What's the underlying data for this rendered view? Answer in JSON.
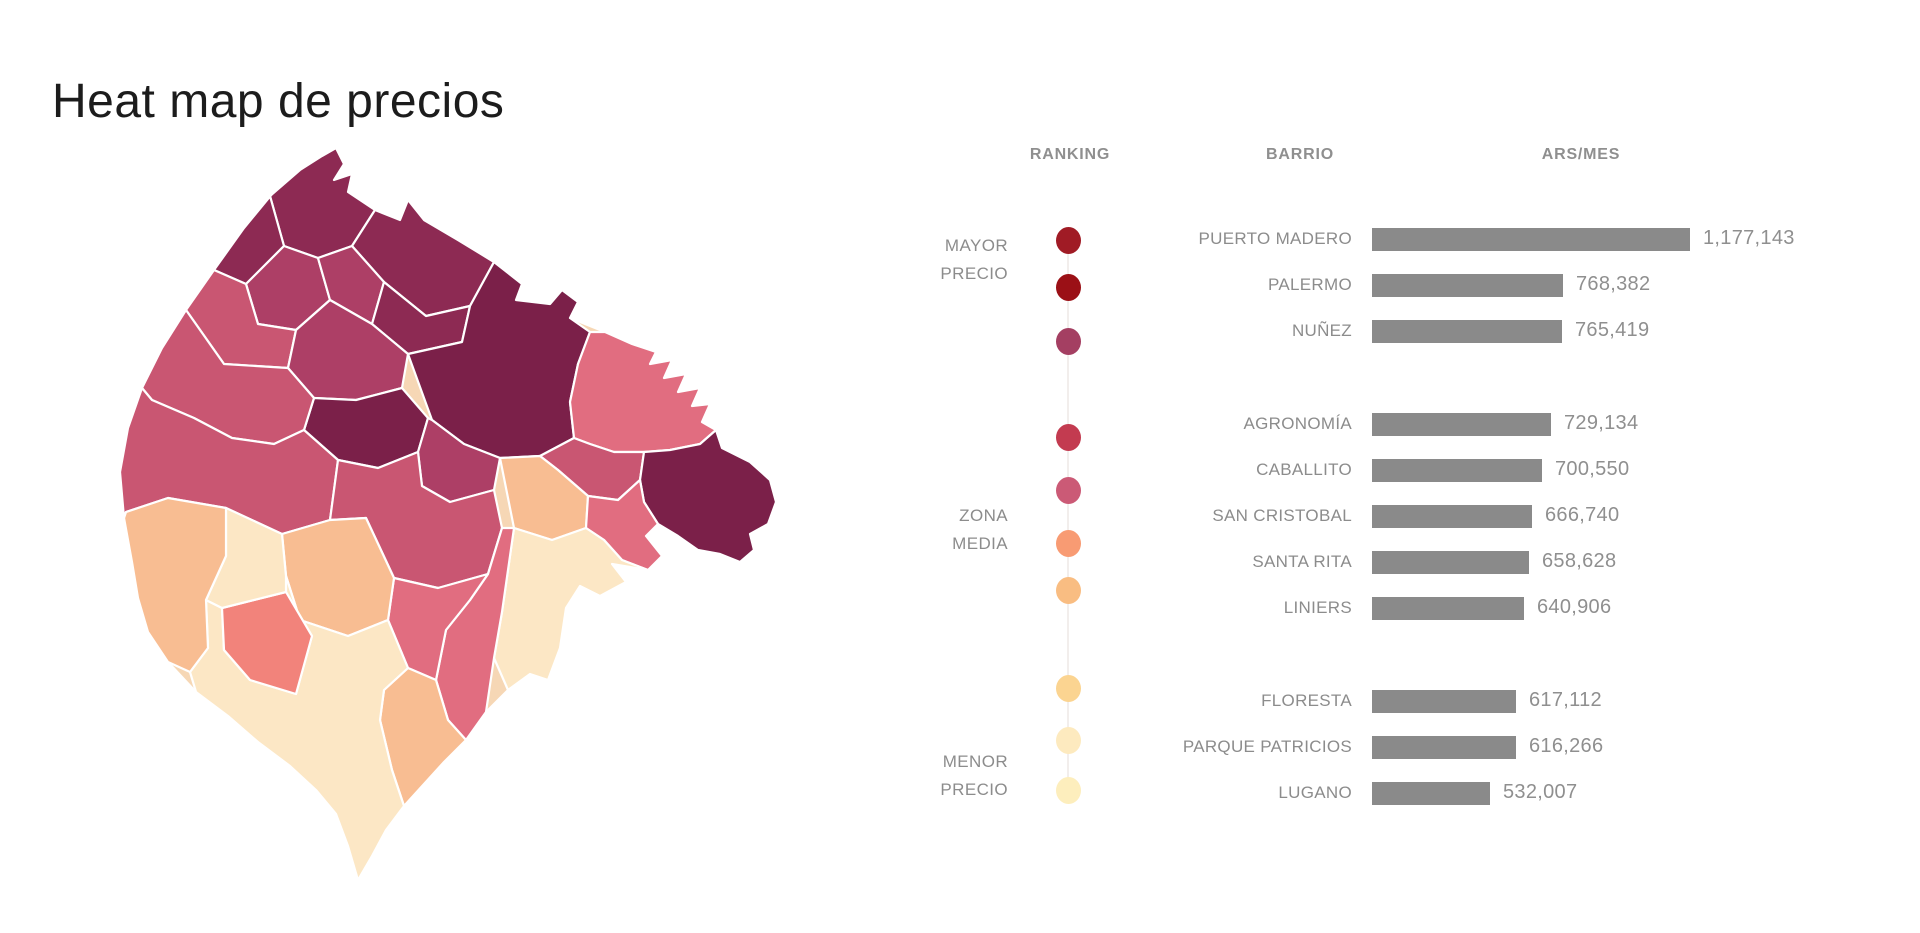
{
  "title": "Heat map de precios",
  "table": {
    "headers": {
      "ranking": "RANKING",
      "barrio": "BARRIO",
      "price": "ARS/MES"
    },
    "groups": [
      {
        "rows": [
          {
            "barrio": "PUERTO MADERO",
            "value": "1,177,143"
          },
          {
            "barrio": "PALERMO",
            "value": "768,382"
          },
          {
            "barrio": "NUÑEZ",
            "value": "765,419"
          }
        ]
      },
      {
        "rows": [
          {
            "barrio": "AGRONOMÍA",
            "value": "729,134"
          },
          {
            "barrio": "CABALLITO",
            "value": "700,550"
          },
          {
            "barrio": "SAN CRISTOBAL",
            "value": "666,740"
          },
          {
            "barrio": "SANTA RITA",
            "value": "658,628"
          },
          {
            "barrio": "LINIERS",
            "value": "640,906"
          }
        ]
      },
      {
        "rows": [
          {
            "barrio": "FLORESTA",
            "value": "617,112"
          },
          {
            "barrio": "PARQUE PATRICIOS",
            "value": "616,266"
          },
          {
            "barrio": "LUGANO",
            "value": "532,007"
          }
        ]
      }
    ],
    "scale_labels": [
      {
        "lines": [
          "MAYOR",
          "PRECIO"
        ]
      },
      {
        "lines": [
          "ZONA",
          "MEDIA"
        ]
      },
      {
        "lines": [
          "MENOR",
          "PRECIO"
        ]
      }
    ],
    "dots": [
      "#a01b25",
      "#9b1016",
      "#a43f62",
      "#c33b50",
      "#cb5a76",
      "#f89b73",
      "#f9bd82",
      "#fbd491",
      "#fdeabf",
      "#fdeebd"
    ],
    "bar_color": "#8a8a8a",
    "timeline_line_color": "#f2eeec"
  },
  "chart_data": {
    "type": "bar",
    "title": "Heat map de precios",
    "categories": [
      "PUERTO MADERO",
      "PALERMO",
      "NUÑEZ",
      "AGRONOMÍA",
      "CABALLITO",
      "SAN CRISTOBAL",
      "SANTA RITA",
      "LINIERS",
      "FLORESTA",
      "PARQUE PATRICIOS",
      "LUGANO"
    ],
    "values": [
      1177143,
      768382,
      765419,
      729134,
      700550,
      666740,
      658628,
      640906,
      617112,
      616266,
      532007
    ],
    "xlabel": "ARS/MES",
    "ylabel": "BARRIO",
    "legend": [
      "MAYOR PRECIO",
      "ZONA MEDIA",
      "MENOR PRECIO"
    ],
    "orientation": "horizontal",
    "grid": false
  },
  "map": {
    "palette": {
      "l1": "#7b2049",
      "l2": "#8d2a53",
      "l3": "#ad3f66",
      "l4": "#c95672",
      "l5": "#e16d80",
      "l6": "#f2837b",
      "l7": "#f8bd92",
      "l8": "#fce7c5"
    },
    "backdrop_color": "#f6d7b5",
    "regions": [
      {
        "id": "r01",
        "level": "l2"
      },
      {
        "id": "r02",
        "level": "l2"
      },
      {
        "id": "r03",
        "level": "l2"
      },
      {
        "id": "r04",
        "level": "l3"
      },
      {
        "id": "r05",
        "level": "l3"
      },
      {
        "id": "r06",
        "level": "l4"
      },
      {
        "id": "r07",
        "level": "l2"
      },
      {
        "id": "r08",
        "level": "l1"
      },
      {
        "id": "r09",
        "level": "l5"
      },
      {
        "id": "r10",
        "level": "l4"
      },
      {
        "id": "r11",
        "level": "l7"
      },
      {
        "id": "r12",
        "level": "l1"
      },
      {
        "id": "r13",
        "level": "l5"
      },
      {
        "id": "r14",
        "level": "l8"
      },
      {
        "id": "r15",
        "level": "l3"
      },
      {
        "id": "r16",
        "level": "l1"
      },
      {
        "id": "r17",
        "level": "l3"
      },
      {
        "id": "r18",
        "level": "l4"
      },
      {
        "id": "r19",
        "level": "l4"
      },
      {
        "id": "r20",
        "level": "l4"
      },
      {
        "id": "r21",
        "level": "l5"
      },
      {
        "id": "r22",
        "level": "l5"
      },
      {
        "id": "r24",
        "level": "l7"
      },
      {
        "id": "r26",
        "level": "l7"
      },
      {
        "id": "r27",
        "level": "l8"
      },
      {
        "id": "r25",
        "level": "l6"
      },
      {
        "id": "r28",
        "level": "l8"
      },
      {
        "id": "r23",
        "level": "l7"
      }
    ]
  }
}
